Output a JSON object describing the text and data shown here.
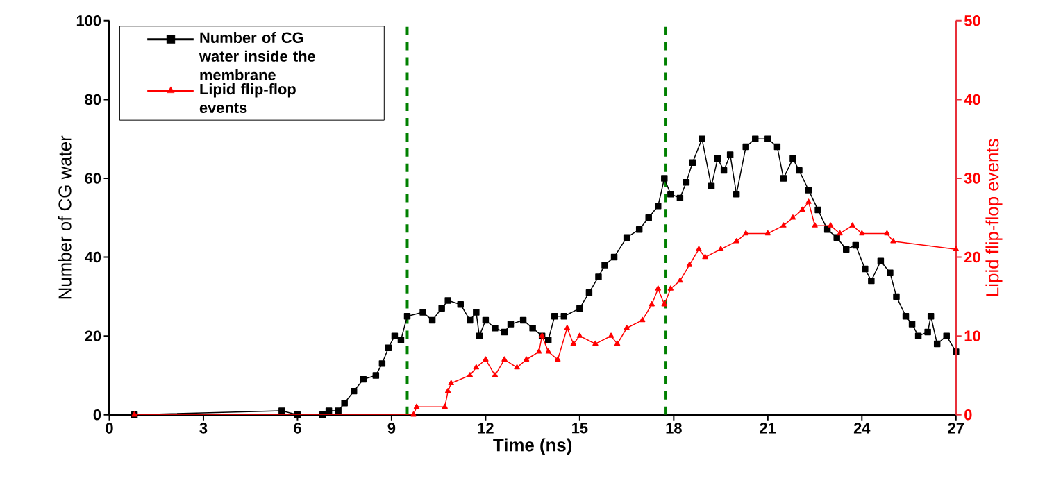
{
  "chart_data": {
    "type": "line",
    "xlabel": "Time (ns)",
    "ylabel": "Number of CG water",
    "y2label": "Lipid flip-flop events",
    "xlim": [
      0,
      27
    ],
    "xticks": [
      0,
      3,
      6,
      9,
      12,
      15,
      18,
      21,
      24,
      27
    ],
    "ylim": [
      0,
      100
    ],
    "yticks": [
      0,
      20,
      40,
      60,
      80,
      100
    ],
    "y2lim": [
      0,
      50
    ],
    "y2ticks": [
      0,
      10,
      20,
      30,
      40,
      50
    ],
    "legend": "top left",
    "grid": false,
    "ref_lines": [
      {
        "axis": "x",
        "value": 9.5,
        "color": "#008000",
        "line_style": "dashed"
      },
      {
        "axis": "x",
        "value": 17.75,
        "color": "#008000",
        "line_style": "dashed"
      }
    ],
    "series": [
      {
        "name": "Number of CG water  inside the membrane",
        "color": "#000000",
        "marker": "square",
        "x": [
          0.8,
          5.5,
          6.0,
          6.8,
          7.0,
          7.3,
          7.5,
          7.8,
          8.1,
          8.5,
          8.7,
          8.9,
          9.1,
          9.3,
          9.5,
          10.0,
          10.3,
          10.6,
          10.8,
          11.2,
          11.5,
          11.7,
          11.8,
          12.0,
          12.3,
          12.6,
          12.8,
          13.2,
          13.5,
          13.8,
          14.0,
          14.2,
          14.5,
          15.0,
          15.3,
          15.6,
          15.8,
          16.1,
          16.5,
          16.9,
          17.2,
          17.5,
          17.7,
          17.9,
          18.2,
          18.4,
          18.6,
          18.9,
          19.2,
          19.4,
          19.6,
          19.8,
          20.0,
          20.3,
          20.6,
          21.0,
          21.3,
          21.5,
          21.8,
          22.0,
          22.3,
          22.6,
          22.9,
          23.2,
          23.5,
          23.8,
          24.1,
          24.3,
          24.6,
          24.9,
          25.1,
          25.4,
          25.6,
          25.8,
          26.1,
          26.2,
          26.4,
          26.7,
          27.0
        ],
        "values": [
          0,
          1,
          0,
          0,
          1,
          1,
          3,
          6,
          9,
          10,
          13,
          17,
          20,
          19,
          25,
          26,
          24,
          27,
          29,
          28,
          24,
          26,
          20,
          24,
          22,
          21,
          23,
          24,
          22,
          20,
          19,
          25,
          25,
          27,
          31,
          35,
          38,
          40,
          45,
          47,
          50,
          53,
          60,
          56,
          55,
          59,
          64,
          70,
          58,
          65,
          62,
          66,
          56,
          68,
          70,
          70,
          68,
          60,
          65,
          62,
          57,
          52,
          47,
          45,
          42,
          43,
          37,
          34,
          39,
          36,
          30,
          25,
          23,
          20,
          21,
          25,
          18,
          20,
          16
        ]
      },
      {
        "name": "Lipid flip-flop events",
        "color": "#ff0000",
        "marker": "triangle",
        "axis": "y2",
        "x": [
          0.8,
          9.7,
          9.8,
          10.7,
          10.8,
          10.9,
          11.5,
          11.7,
          12.0,
          12.3,
          12.6,
          13.0,
          13.3,
          13.7,
          13.8,
          14.0,
          14.3,
          14.6,
          14.8,
          15.0,
          15.5,
          16.0,
          16.2,
          16.5,
          17.0,
          17.3,
          17.5,
          17.7,
          17.9,
          18.2,
          18.5,
          18.8,
          19.0,
          19.5,
          20.0,
          20.3,
          21.0,
          21.5,
          21.8,
          22.1,
          22.3,
          22.5,
          23.0,
          23.3,
          23.7,
          24.0,
          24.8,
          25.0,
          27.0
        ],
        "values": [
          0,
          0,
          1,
          1,
          3,
          4,
          5,
          6,
          7,
          5,
          7,
          6,
          7,
          8,
          10,
          8,
          7,
          11,
          9,
          10,
          9,
          10,
          9,
          11,
          12,
          14,
          16,
          14,
          16,
          17,
          19,
          21,
          20,
          21,
          22,
          23,
          23,
          24,
          25,
          26,
          27,
          24,
          24,
          23,
          24,
          23,
          23,
          22,
          21
        ]
      }
    ]
  }
}
